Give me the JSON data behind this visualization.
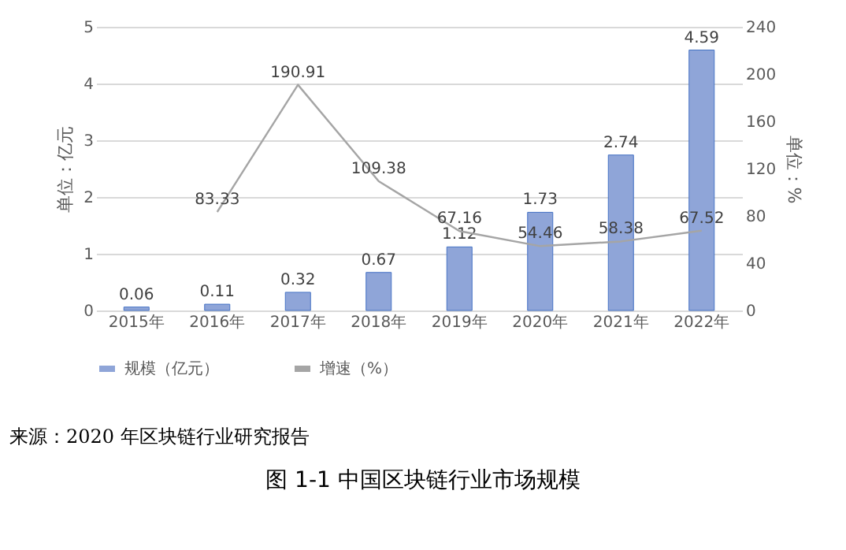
{
  "chart_data": {
    "type": "bar",
    "title": "图 1-1 中国区块链行业市场规模",
    "categories": [
      "2015年",
      "2016年",
      "2017年",
      "2018年",
      "2019年",
      "2020年",
      "2021年",
      "2022年"
    ],
    "series": [
      {
        "name": "规模（亿元）",
        "color": "#8fa5d8",
        "values": [
          0.06,
          0.11,
          0.32,
          0.67,
          1.12,
          1.73,
          2.74,
          4.59
        ]
      },
      {
        "name": "增速（%）",
        "type": "line",
        "axis": "y2",
        "color": "#a5a5a5",
        "values": [
          null,
          83.33,
          190.91,
          109.38,
          67.16,
          54.46,
          58.38,
          67.52
        ]
      }
    ],
    "ylabel": "单位：亿元",
    "y2label": "单位：%",
    "ylim": [
      0,
      5
    ],
    "yticks": [
      0,
      1,
      2,
      3,
      4,
      5
    ],
    "y2lim": [
      0,
      240
    ],
    "y2ticks": [
      0,
      40,
      80,
      120,
      160,
      200,
      240
    ],
    "grid": "y",
    "legend": "bottom",
    "data_labels": true,
    "annotations": [
      "来源：2020 年区块链行业研究报告"
    ]
  }
}
